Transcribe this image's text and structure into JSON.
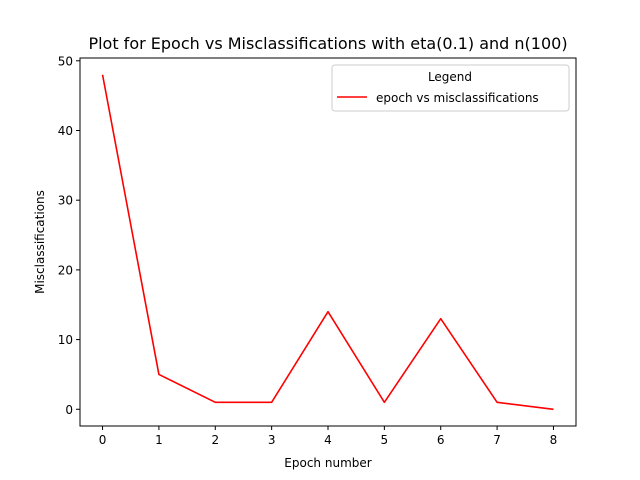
{
  "chart_data": {
    "type": "line",
    "title": "Plot for Epoch vs Misclassifications with eta(0.1) and n(100)",
    "xlabel": "Epoch number",
    "ylabel": "Misclassifications",
    "x": [
      0,
      1,
      2,
      3,
      4,
      5,
      6,
      7,
      8
    ],
    "series": [
      {
        "name": "epoch vs misclassifications",
        "color": "#ff0000",
        "values": [
          48,
          5,
          1,
          1,
          14,
          1,
          13,
          1,
          0
        ]
      }
    ],
    "xlim": [
      -0.4,
      8.4
    ],
    "ylim": [
      -2.4,
      50.4
    ],
    "xticks": [
      "0",
      "1",
      "2",
      "3",
      "4",
      "5",
      "6",
      "7",
      "8"
    ],
    "yticks": [
      "0",
      "10",
      "20",
      "30",
      "40",
      "50"
    ],
    "grid": false,
    "legend": {
      "title": "Legend",
      "placement": "top-right"
    }
  }
}
